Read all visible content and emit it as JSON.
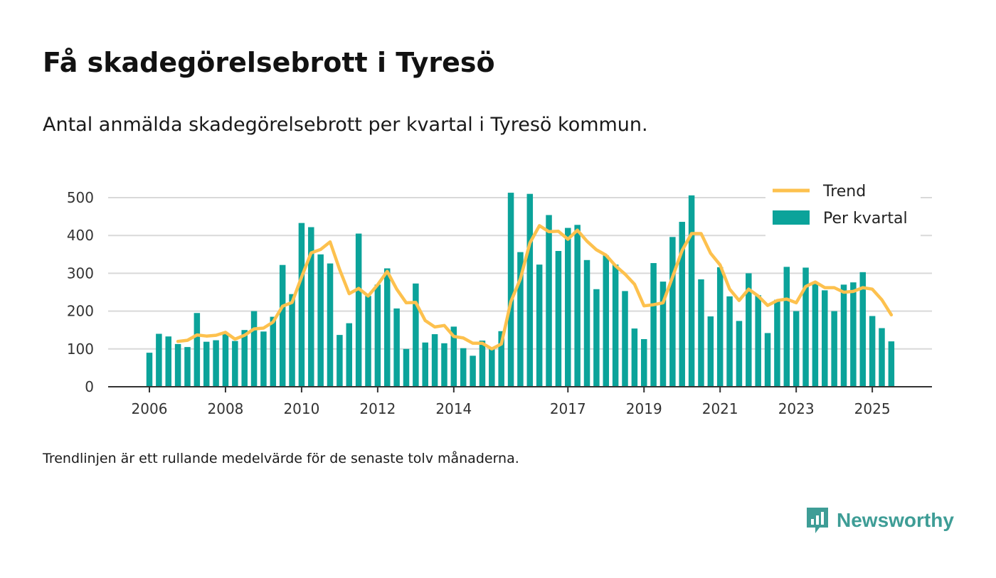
{
  "title": "Få skadegörelsebrott i Tyresö",
  "subtitle": "Antal anmälda skadegörelsebrott per kvartal i Tyresö kommun.",
  "note": "Trendlinjen är ett rullande medelvärde för de senaste tolv månaderna.",
  "brand": {
    "name": "Newsworthy",
    "icon": "newsworthy-logo-icon",
    "color": "#3e9d96"
  },
  "chart_data": {
    "type": "bar",
    "title": "Få skadegörelsebrott i Tyresö",
    "subtitle": "Antal anmälda skadegörelsebrott per kvartal i Tyresö kommun.",
    "xlabel": "",
    "ylabel": "",
    "ylim": [
      0,
      500
    ],
    "yticks": [
      0,
      100,
      200,
      300,
      400,
      500
    ],
    "ytick_labels": [
      "0",
      "100",
      "200",
      "300",
      "400",
      "500"
    ],
    "xticks": [
      {
        "label": "2006",
        "index": 0
      },
      {
        "label": "2008",
        "index": 8
      },
      {
        "label": "2010",
        "index": 16
      },
      {
        "label": "2012",
        "index": 24
      },
      {
        "label": "2014",
        "index": 32
      },
      {
        "label": "2017",
        "index": 44
      },
      {
        "label": "2019",
        "index": 52
      },
      {
        "label": "2021",
        "index": 60
      },
      {
        "label": "2023",
        "index": 68
      },
      {
        "label": "2025",
        "index": 76
      }
    ],
    "grid": true,
    "legend_position": "top-right",
    "colors": {
      "bars": "#0ba39a",
      "trend": "#fdc14e",
      "grid": "#d9d9d9",
      "axis": "#333333"
    },
    "series": [
      {
        "name": "Per kvartal",
        "type": "bar",
        "values": [
          90,
          140,
          133,
          113,
          105,
          195,
          119,
          123,
          140,
          121,
          150,
          200,
          146,
          185,
          322,
          245,
          433,
          422,
          350,
          326,
          137,
          168,
          405,
          240,
          270,
          313,
          207,
          100,
          273,
          117,
          139,
          115,
          159,
          102,
          82,
          122,
          100,
          147,
          513,
          356,
          510,
          323,
          454,
          359,
          420,
          428,
          335,
          258,
          347,
          323,
          253,
          154,
          126,
          327,
          278,
          396,
          436,
          506,
          284,
          186,
          316,
          239,
          174,
          300,
          242,
          142,
          230,
          317,
          200,
          315,
          272,
          255,
          200,
          270,
          276,
          303,
          187,
          155,
          120
        ]
      },
      {
        "name": "Trend",
        "type": "line",
        "start_index": 3,
        "values": [
          120,
          123,
          137,
          134,
          136,
          144,
          126,
          136,
          153,
          155,
          171,
          213,
          223,
          290,
          354,
          363,
          383,
          310,
          246,
          260,
          240,
          270,
          305,
          258,
          222,
          223,
          175,
          158,
          162,
          133,
          129,
          115,
          115,
          100,
          113,
          225,
          285,
          380,
          426,
          410,
          411,
          390,
          414,
          385,
          362,
          348,
          320,
          298,
          271,
          214,
          217,
          222,
          290,
          360,
          405,
          405,
          353,
          322,
          258,
          228,
          258,
          240,
          215,
          228,
          232,
          222,
          265,
          277,
          262,
          262,
          250,
          252,
          262,
          258,
          230,
          190
        ]
      }
    ]
  }
}
